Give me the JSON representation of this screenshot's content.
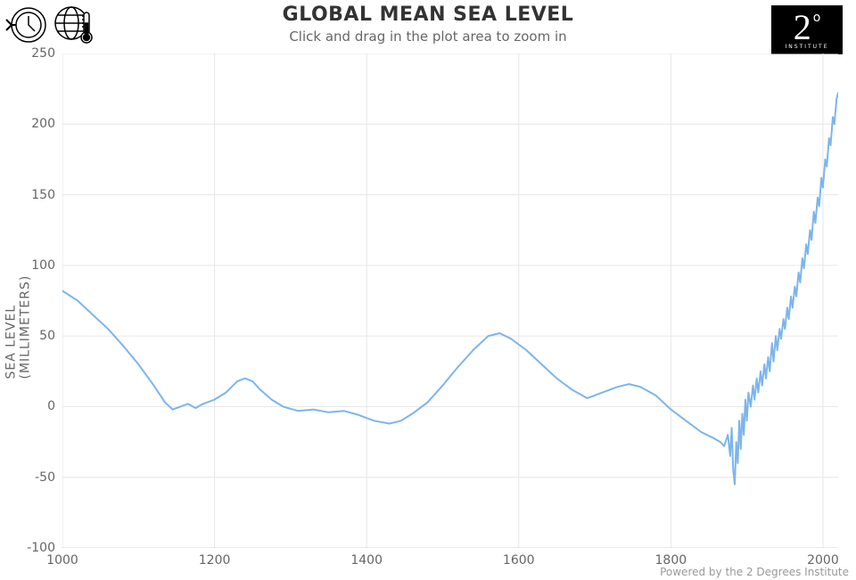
{
  "title": "GLOBAL MEAN SEA LEVEL",
  "subtitle": "Click and drag in the plot area to zoom in",
  "ylabel": "SEA LEVEL (MILLIMETERS)",
  "credit": "Powered by the 2 Degrees Institute",
  "logo": {
    "main": "2",
    "degree": "o",
    "sub": "INSTITUTE"
  },
  "chart": {
    "type": "line",
    "xlim": [
      1000,
      2020
    ],
    "ylim": [
      -100,
      250
    ],
    "xticks": [
      1000,
      1200,
      1400,
      1600,
      1800,
      2000
    ],
    "yticks": [
      -100,
      -50,
      0,
      50,
      100,
      150,
      200,
      250
    ],
    "xtick_labels": [
      "1000",
      "1200",
      "1400",
      "1600",
      "1800",
      "2000"
    ],
    "ytick_labels": [
      "-100",
      "-50",
      "0",
      "50",
      "100",
      "150",
      "200",
      "250"
    ],
    "line_color": "#7cb5ec",
    "line_width": 2,
    "grid_color": "#e6e6e6",
    "background": "#ffffff",
    "tick_fontsize": 14,
    "tick_color": "#666666",
    "series": [
      [
        1000,
        82
      ],
      [
        1020,
        75
      ],
      [
        1040,
        65
      ],
      [
        1060,
        55
      ],
      [
        1080,
        43
      ],
      [
        1100,
        30
      ],
      [
        1120,
        15
      ],
      [
        1135,
        3
      ],
      [
        1145,
        -2
      ],
      [
        1155,
        0
      ],
      [
        1165,
        2
      ],
      [
        1175,
        -1
      ],
      [
        1185,
        2
      ],
      [
        1200,
        5
      ],
      [
        1215,
        10
      ],
      [
        1230,
        18
      ],
      [
        1240,
        20
      ],
      [
        1250,
        18
      ],
      [
        1260,
        12
      ],
      [
        1275,
        5
      ],
      [
        1290,
        0
      ],
      [
        1310,
        -3
      ],
      [
        1330,
        -2
      ],
      [
        1350,
        -4
      ],
      [
        1370,
        -3
      ],
      [
        1390,
        -6
      ],
      [
        1410,
        -10
      ],
      [
        1430,
        -12
      ],
      [
        1445,
        -10
      ],
      [
        1460,
        -5
      ],
      [
        1480,
        3
      ],
      [
        1500,
        15
      ],
      [
        1520,
        28
      ],
      [
        1540,
        40
      ],
      [
        1560,
        50
      ],
      [
        1575,
        52
      ],
      [
        1590,
        48
      ],
      [
        1610,
        40
      ],
      [
        1630,
        30
      ],
      [
        1650,
        20
      ],
      [
        1670,
        12
      ],
      [
        1690,
        6
      ],
      [
        1710,
        10
      ],
      [
        1730,
        14
      ],
      [
        1745,
        16
      ],
      [
        1760,
        14
      ],
      [
        1780,
        8
      ],
      [
        1800,
        -2
      ],
      [
        1820,
        -10
      ],
      [
        1840,
        -18
      ],
      [
        1855,
        -22
      ],
      [
        1865,
        -25
      ],
      [
        1870,
        -28
      ],
      [
        1875,
        -20
      ],
      [
        1878,
        -35
      ],
      [
        1880,
        -15
      ],
      [
        1882,
        -45
      ],
      [
        1884,
        -55
      ],
      [
        1886,
        -25
      ],
      [
        1888,
        -40
      ],
      [
        1890,
        -10
      ],
      [
        1892,
        -30
      ],
      [
        1894,
        -5
      ],
      [
        1896,
        -20
      ],
      [
        1898,
        5
      ],
      [
        1900,
        -10
      ],
      [
        1902,
        10
      ],
      [
        1905,
        0
      ],
      [
        1908,
        15
      ],
      [
        1910,
        5
      ],
      [
        1913,
        20
      ],
      [
        1915,
        10
      ],
      [
        1918,
        25
      ],
      [
        1920,
        15
      ],
      [
        1923,
        30
      ],
      [
        1925,
        20
      ],
      [
        1928,
        35
      ],
      [
        1930,
        25
      ],
      [
        1933,
        45
      ],
      [
        1935,
        32
      ],
      [
        1938,
        50
      ],
      [
        1940,
        40
      ],
      [
        1943,
        55
      ],
      [
        1945,
        48
      ],
      [
        1948,
        62
      ],
      [
        1950,
        55
      ],
      [
        1953,
        70
      ],
      [
        1955,
        62
      ],
      [
        1958,
        78
      ],
      [
        1960,
        70
      ],
      [
        1963,
        85
      ],
      [
        1965,
        78
      ],
      [
        1968,
        95
      ],
      [
        1970,
        88
      ],
      [
        1973,
        105
      ],
      [
        1975,
        98
      ],
      [
        1978,
        115
      ],
      [
        1980,
        108
      ],
      [
        1983,
        125
      ],
      [
        1985,
        118
      ],
      [
        1988,
        138
      ],
      [
        1990,
        130
      ],
      [
        1993,
        148
      ],
      [
        1995,
        142
      ],
      [
        1998,
        162
      ],
      [
        2000,
        155
      ],
      [
        2003,
        175
      ],
      [
        2005,
        170
      ],
      [
        2008,
        190
      ],
      [
        2010,
        185
      ],
      [
        2013,
        205
      ],
      [
        2015,
        200
      ],
      [
        2018,
        218
      ],
      [
        2020,
        222
      ]
    ]
  }
}
